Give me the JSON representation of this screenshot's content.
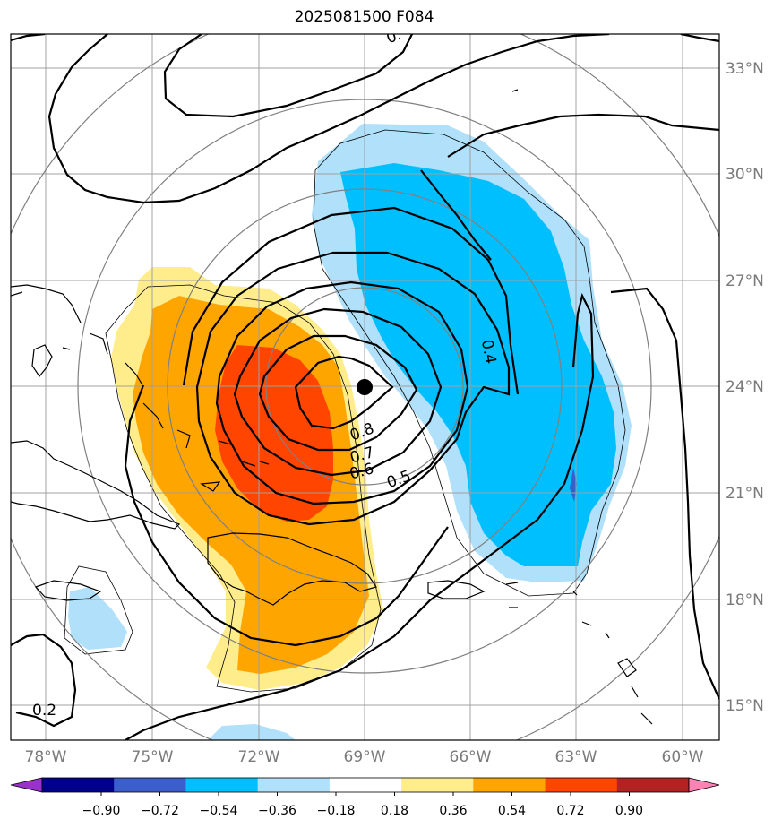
{
  "title": "2025081500 F084",
  "colors": {
    "neg_090_inf": "#9932cc",
    "neg_090_072": "#00008b",
    "neg_072_054": "#3a5fcd",
    "neg_054_036": "#00bfff",
    "neg_036_018": "#b0e0fa",
    "neutral": "#ffffff",
    "pos_018_036": "#ffec8b",
    "pos_036_054": "#ffa500",
    "pos_054_072": "#ff4500",
    "pos_072_090": "#b22222",
    "pos_090_inf": "#ff82b4",
    "contour": "#000000",
    "grid": "#a0a0a0",
    "range_ring": "#808080"
  },
  "map": {
    "lon_labels": [
      "78°W",
      "75°W",
      "72°W",
      "69°W",
      "66°W",
      "63°W",
      "60°W"
    ],
    "lat_labels": [
      "33°N",
      "30°N",
      "27°N",
      "24°N",
      "21°N",
      "18°N",
      "15°N"
    ],
    "contour_labels": [
      "0.8",
      "0.7",
      "0.6",
      "0.5",
      "0.4",
      "0.2",
      "0."
    ],
    "center_marker": {
      "lon": -69.0,
      "lat": 24.0,
      "label": ""
    }
  },
  "colorbar": {
    "ticks": [
      "−0.90",
      "−0.72",
      "−0.54",
      "−0.36",
      "−0.18",
      "0.18",
      "0.36",
      "0.54",
      "0.72",
      "0.90"
    ],
    "bins": [
      "#00008b",
      "#3a5fcd",
      "#00bfff",
      "#b0e0fa",
      "#ffffff",
      "#ffec8b",
      "#ffa500",
      "#ff4500",
      "#b22222"
    ],
    "extend_min_color": "#9932cc",
    "extend_max_color": "#ff82b4"
  }
}
